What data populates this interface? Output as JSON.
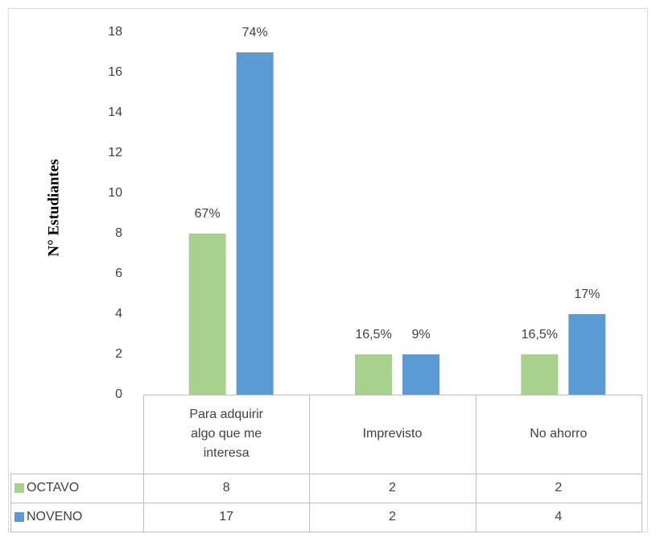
{
  "chart_data": {
    "type": "bar",
    "y_axis_label": "N° Estudiantes",
    "categories": [
      "Para adquirir algo que me interesa",
      "Imprevisto",
      "No ahorro"
    ],
    "series": [
      {
        "name": "OCTAVO",
        "color": "#a9d18e",
        "values": [
          8,
          2,
          2
        ],
        "labels": [
          "67%",
          "16,5%",
          "16,5%"
        ]
      },
      {
        "name": "NOVENO",
        "color": "#5b9bd5",
        "values": [
          17,
          2,
          4
        ],
        "labels": [
          "74%",
          "9%",
          "17%"
        ]
      }
    ],
    "ylim": [
      0,
      18
    ],
    "yticks": [
      0,
      2,
      4,
      6,
      8,
      10,
      12,
      14,
      16,
      18
    ],
    "grid": false,
    "legend": "table"
  }
}
